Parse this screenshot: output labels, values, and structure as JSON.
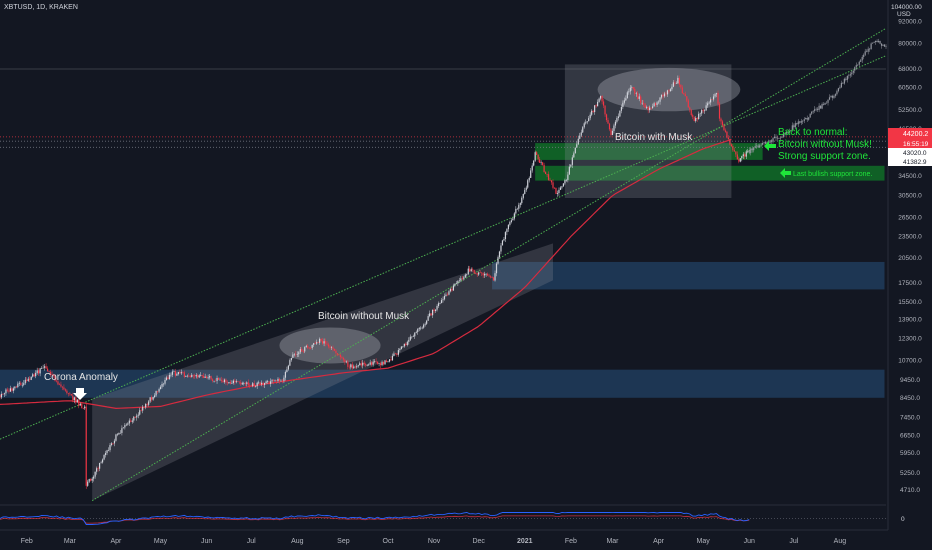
{
  "header": {
    "symbol_label": "XBTUSD, 1D, KRAKEN",
    "currency": "USD",
    "scale_note": "104000.00"
  },
  "colors": {
    "background": "#131722",
    "up": "#d1d4dc",
    "down": "#f23645",
    "ma": "#d62b3f",
    "trend": "#4caf50",
    "zone_blue": "#2f6aa3",
    "zone_green": "#0e9d2a",
    "box_gray": "#8a8d96",
    "label_green": "#1fe63a",
    "price_tag": "#f23645"
  },
  "annotations": {
    "corona": "Corona Anomaly",
    "without_musk": "Bitcoin without Musk",
    "with_musk": "Bitcoin with Musk",
    "back_normal_1": "Back to normal:",
    "back_normal_2": "Bitcoin without Musk!",
    "back_normal_3": "Strong support zone.",
    "last_bullish": "Last bullish support zone."
  },
  "price_tags": {
    "current": "44200.2",
    "countdown": "16:55:19",
    "level_1": "43020.0",
    "level_2": "41382.9"
  },
  "chart_data": {
    "type": "candlestick",
    "y_scale": "log",
    "ylim": [
      4200,
      104000
    ],
    "y_ticks": [
      4710,
      5250,
      5950,
      6650,
      7450,
      8450,
      9450,
      10700,
      12300,
      13900,
      15500,
      17500,
      20500,
      23500,
      26500,
      30500,
      34500,
      39500,
      46500,
      52500,
      60500,
      68000,
      80000,
      92000
    ],
    "x_labels": [
      "Feb",
      "Mar",
      "Apr",
      "May",
      "Jun",
      "Jul",
      "Aug",
      "Sep",
      "Oct",
      "Nov",
      "Dec",
      "2021",
      "Feb",
      "Mar",
      "Apr",
      "May",
      "Jun",
      "Jul",
      "Aug"
    ],
    "x_label_bold": "2021",
    "x_range": [
      "2020-01-14",
      "2021-09-01"
    ],
    "price_path": [
      [
        "2020-01-14",
        8600
      ],
      [
        "2020-02-01",
        9400
      ],
      [
        "2020-02-13",
        10300
      ],
      [
        "2020-02-28",
        8700
      ],
      [
        "2020-03-11",
        7900
      ],
      [
        "2020-03-12",
        4900
      ],
      [
        "2020-03-16",
        5100
      ],
      [
        "2020-04-01",
        6600
      ],
      [
        "2020-04-29",
        8800
      ],
      [
        "2020-05-08",
        9900
      ],
      [
        "2020-06-01",
        9600
      ],
      [
        "2020-07-01",
        9150
      ],
      [
        "2020-07-22",
        9450
      ],
      [
        "2020-07-28",
        11000
      ],
      [
        "2020-08-17",
        12200
      ],
      [
        "2020-09-05",
        10300
      ],
      [
        "2020-10-01",
        10600
      ],
      [
        "2020-10-21",
        12900
      ],
      [
        "2020-11-05",
        15500
      ],
      [
        "2020-11-24",
        19000
      ],
      [
        "2020-12-11",
        18000
      ],
      [
        "2020-12-17",
        23000
      ],
      [
        "2021-01-02",
        32000
      ],
      [
        "2021-01-08",
        40000
      ],
      [
        "2021-01-22",
        31000
      ],
      [
        "2021-01-29",
        34000
      ],
      [
        "2021-02-08",
        46000
      ],
      [
        "2021-02-21",
        57000
      ],
      [
        "2021-02-28",
        45000
      ],
      [
        "2021-03-13",
        61000
      ],
      [
        "2021-03-25",
        52000
      ],
      [
        "2021-04-14",
        63500
      ],
      [
        "2021-04-25",
        49000
      ],
      [
        "2021-05-10",
        58000
      ],
      [
        "2021-05-12",
        50000
      ],
      [
        "2021-05-19",
        42000
      ],
      [
        "2021-05-25",
        38000
      ],
      [
        "2021-06-01",
        40500
      ]
    ],
    "projection_path": [
      [
        "2021-06-01",
        40500
      ],
      [
        "2021-06-20",
        44000
      ],
      [
        "2021-07-10",
        50000
      ],
      [
        "2021-07-25",
        56000
      ],
      [
        "2021-08-10",
        68000
      ],
      [
        "2021-08-25",
        82000
      ],
      [
        "2021-09-01",
        78000
      ]
    ],
    "moving_average": [
      [
        "2020-01-14",
        8100
      ],
      [
        "2020-03-01",
        8300
      ],
      [
        "2020-04-01",
        7900
      ],
      [
        "2020-05-01",
        8000
      ],
      [
        "2020-06-01",
        8600
      ],
      [
        "2020-07-01",
        9100
      ],
      [
        "2020-08-01",
        9500
      ],
      [
        "2020-09-01",
        9900
      ],
      [
        "2020-10-01",
        10200
      ],
      [
        "2020-11-01",
        11200
      ],
      [
        "2020-12-01",
        13300
      ],
      [
        "2021-01-01",
        17000
      ],
      [
        "2021-02-01",
        23500
      ],
      [
        "2021-03-01",
        30500
      ],
      [
        "2021-04-01",
        36000
      ],
      [
        "2021-05-01",
        41000
      ],
      [
        "2021-05-20",
        43500
      ]
    ],
    "trend_lines": [
      {
        "from": [
          "2020-01-14",
          6500
        ],
        "to": [
          "2021-09-01",
          74000
        ]
      },
      {
        "from": [
          "2020-03-16",
          4400
        ],
        "to": [
          "2021-09-01",
          88000
        ]
      }
    ],
    "channel": {
      "start": "2020-03-16",
      "end": "2021-01-20",
      "top_start": 8400,
      "top_end": 22500,
      "bottom_start": 4400,
      "bottom_end": 17800
    },
    "zones": [
      {
        "start": "2020-01-14",
        "end": "2021-08-31",
        "top": 10100,
        "bottom": 8450,
        "color": "blue"
      },
      {
        "start": "2020-12-10",
        "end": "2021-08-31",
        "top": 20000,
        "bottom": 16800,
        "color": "blue"
      },
      {
        "start": "2021-01-08",
        "end": "2021-06-10",
        "top": 42500,
        "bottom": 38200,
        "color": "green"
      },
      {
        "start": "2021-01-08",
        "end": "2021-08-31",
        "top": 36800,
        "bottom": 33500,
        "color": "green"
      }
    ],
    "boxes": [
      {
        "start": "2021-01-28",
        "end": "2021-05-20",
        "top": 70000,
        "bottom": 30000
      }
    ],
    "ellipses": [
      {
        "center": [
          "2020-08-23",
          11800
        ],
        "date_half_width_days": 34,
        "top": 13200,
        "bottom": 10500
      },
      {
        "center": [
          "2021-04-08",
          60000
        ],
        "date_half_width_days": 48,
        "top": 68500,
        "bottom": 52000
      }
    ],
    "horizontal_lines": [
      {
        "price": 44200,
        "style": "dotted",
        "color": "red"
      },
      {
        "price": 43020,
        "style": "dotted",
        "color": "gray"
      },
      {
        "price": 41382,
        "style": "dotted",
        "color": "gray"
      },
      {
        "price": 68000,
        "style": "solid",
        "color": "gray"
      }
    ],
    "indicator": {
      "ylabel": "0",
      "reference_line": "dotted"
    }
  }
}
